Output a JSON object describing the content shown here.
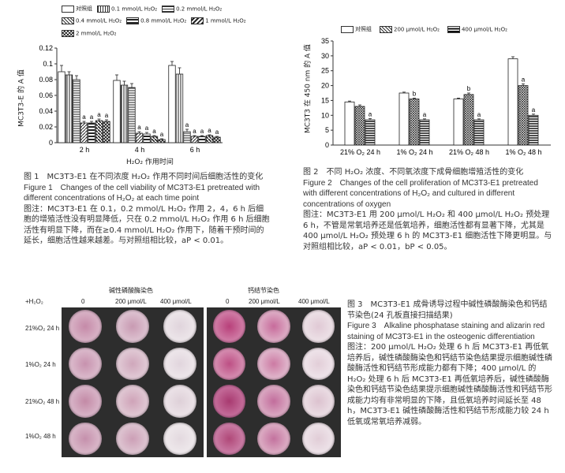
{
  "fig1": {
    "legend": [
      "对照组",
      "0.1 mmol/L H₂O₂",
      "0.2 mmol/L H₂O₂",
      "0.4 mmol/L H₂O₂",
      "0.8 mmol/L H₂O₂",
      "1 mmol/L H₂O₂",
      "2 mmol/L H₂O₂"
    ],
    "ylabel": "MC3T3-E 的 A 值",
    "xlabel": "H₂O₂ 作用时间",
    "caption_cn": "图 1　MC3T3-E1 在不同浓度 H₂O₂ 作用不同时间后细胞活性的变化",
    "caption_en": "Figure 1　Changes of the cell viability of MC3T3-E1 pretreated with different concentrations of H₂O₂ at each time point",
    "note": "图注：MC3T3-E1 在 0.1，0.2 mmol/L H₂O₂ 作用 2，4，6 h 后细胞的增殖活性没有明显降低，只在 0.2 mmol/L H₂O₂ 作用 6 h 后细胞活性有明显下降，而在≥0.4 mmol/L H₂O₂ 作用下，随着干预时间的延长，细胞活性越来越差。与对照组相比较，aP < 0.01。"
  },
  "fig2": {
    "legend": [
      "对照组",
      "200 μmol/L H₂O₂",
      "400 μmol/L H₂O₂"
    ],
    "ylabel": "MC3T3 在 450 nm 的 A 值",
    "caption_cn": "图 2　不同 H₂O₂ 浓度、不同氧浓度下成骨细胞增殖活性的变化",
    "caption_en": "Figure 2　Changes of the cell proliferation of MC3T3-E1 pretreated with different concentrations of H₂O₂ and cultured in different concentrations of oxygen",
    "note": "图注：MC3T3-E1 用 200 μmol/L H₂O₂ 和 400 μmol/L H₂O₂ 预处理 6 h，不管是常氧培养还是低氧培养，细胞活性都有显著下降，尤其是 400 μmol/L H₂O₂ 预处理 6 h 的 MC3T3-E1 细胞活性下降更明显。与对照组相比较，aP < 0.01，bP < 0.05。"
  },
  "fig3": {
    "group_left": "碱性磷酸酶染色",
    "group_right": "钙结节染色",
    "col_head": "+H₂O₂",
    "cols": [
      "0",
      "200 μmol/L",
      "400 μmol/L",
      "0",
      "200 μmol/L",
      "400 μmol/L"
    ],
    "rows": [
      "21%O₂ 24 h",
      "1%O₂ 24 h",
      "21%O₂ 48 h",
      "1%O₂ 48 h"
    ],
    "caption_cn": "图 3　MC3T3-E1 成骨诱导过程中碱性磷酸酶染色和钙结节染色(24 孔板直接扫描结果)",
    "caption_en": "Figure 3　Alkaline phosphatase staining and alizarin red staining of MC3T3-E1 in the osteogenic differentiation",
    "note": "图注：200 μmol/L H₂O₂ 处理 6 h 后 MC3T3-E1 再低氧培养后，碱性磷酸酶染色和钙结节染色结果提示细胞碱性磷酸酶活性和钙结节形成能力都有下降；400 μmol/L 的 H₂O₂ 处理 6 h 后 MC3T3-E1 再低氧培养后，碱性磷酸酶染色和钙结节染色结果提示细胞碱性磷酸酶活性和钙结节形成能力均有非常明显的下降，且低氧培养时间延长至 48 h，MC3T3-E1 碱性磷酸酶活性和钙结节形成能力较 24 h 低氧或常氧培养减弱。"
  },
  "chart_data": [
    {
      "type": "bar",
      "categories": [
        "2 h",
        "4 h",
        "6 h"
      ],
      "xlabel": "H₂O₂ 作用时间",
      "ylabel": "MC3T3-E 的 A 值",
      "ylim": [
        0,
        0.12
      ],
      "yticks": [
        "0",
        "0.02",
        "0.04",
        "0.06",
        "0.08",
        "0.1",
        "0.12"
      ],
      "series": [
        {
          "name": "对照组",
          "values": [
            0.09,
            0.079,
            0.098
          ],
          "err": [
            0.008,
            0.007,
            0.005
          ],
          "mark": [
            "",
            "",
            ""
          ]
        },
        {
          "name": "0.1 mmol/L H₂O₂",
          "values": [
            0.086,
            0.073,
            0.087
          ],
          "err": [
            0.004,
            0.005,
            0.008
          ],
          "mark": [
            "",
            "",
            ""
          ]
        },
        {
          "name": "0.2 mmol/L H₂O₂",
          "values": [
            0.08,
            0.07,
            0.014
          ],
          "err": [
            0.005,
            0.005,
            0.003
          ],
          "mark": [
            "",
            "",
            "a"
          ]
        },
        {
          "name": "0.4 mmol/L H₂O₂",
          "values": [
            0.025,
            0.012,
            0.008
          ],
          "err": [
            0.002,
            0.002,
            0.001
          ],
          "mark": [
            "a",
            "a",
            "a"
          ]
        },
        {
          "name": "0.8 mmol/L H₂O₂",
          "values": [
            0.025,
            0.011,
            0.008
          ],
          "err": [
            0.002,
            0.002,
            0.001
          ],
          "mark": [
            "a",
            "a",
            "a"
          ]
        },
        {
          "name": "1 mmol/L H₂O₂",
          "values": [
            0.028,
            0.008,
            0.009
          ],
          "err": [
            0.002,
            0.001,
            0.001
          ],
          "mark": [
            "a",
            "a",
            "a"
          ]
        },
        {
          "name": "2 mmol/L H₂O₂",
          "values": [
            0.027,
            0.004,
            0.007
          ],
          "err": [
            0.002,
            0.001,
            0.001
          ],
          "mark": [
            "a",
            "a",
            "a"
          ]
        }
      ]
    },
    {
      "type": "bar",
      "categories": [
        "21% O₂ 24 h",
        "1% O₂ 24 h",
        "21% O₂ 48 h",
        "1% O₂ 48 h"
      ],
      "ylabel": "MC3T3 在 450 nm 的 A 值",
      "ylim": [
        0,
        35
      ],
      "yticks": [
        "0",
        "5",
        "10",
        "15",
        "20",
        "25",
        "30",
        "35"
      ],
      "series": [
        {
          "name": "对照组",
          "values": [
            14.5,
            17.5,
            15.5,
            29
          ],
          "err": [
            0.3,
            0.3,
            0.3,
            0.7
          ],
          "mark": [
            "",
            "",
            "",
            ""
          ]
        },
        {
          "name": "200 μmol/L H₂O₂",
          "values": [
            13,
            15.5,
            17,
            20
          ],
          "err": [
            0.5,
            0.3,
            0.5,
            0.6
          ],
          "mark": [
            "",
            "b",
            "b",
            "a"
          ]
        },
        {
          "name": "400 μmol/L H₂O₂",
          "values": [
            8.5,
            8.5,
            8.5,
            10
          ],
          "err": [
            0.4,
            0.3,
            0.3,
            0.4
          ],
          "mark": [
            "a",
            "a",
            "a",
            "a"
          ]
        }
      ]
    }
  ]
}
